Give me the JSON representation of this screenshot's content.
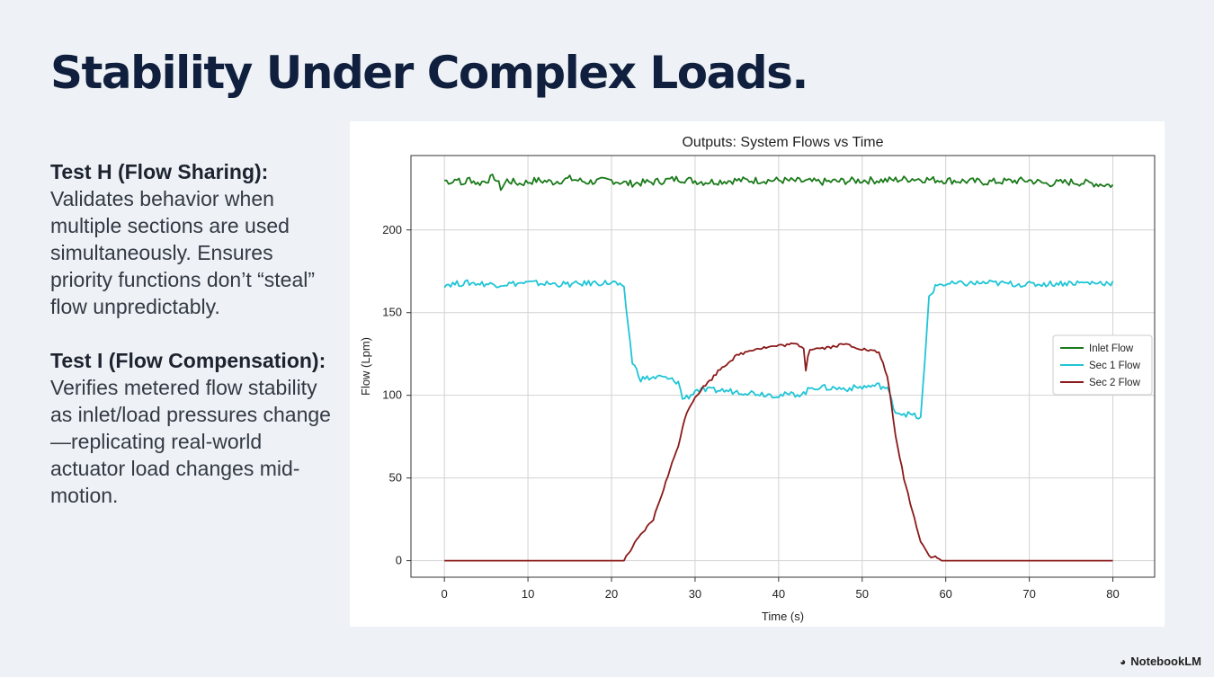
{
  "slide": {
    "title": "Stability Under Complex Loads.",
    "blocks": [
      {
        "heading": "Test H (Flow Sharing):",
        "text": "Validates behavior when multiple sections are used simultaneously. Ensures priority functions don’t “steal” flow unpredictably."
      },
      {
        "heading": "Test I (Flow Compensation):",
        "text": "Verifies metered flow stability as inlet/load pressures change—replicating real-world actuator load changes mid-motion."
      }
    ],
    "brand": "NotebookLM",
    "brand_icon": "notebooklm-logo-icon"
  },
  "chart_data": {
    "type": "line",
    "title": "Outputs: System Flows vs Time",
    "xlabel": "Time (s)",
    "ylabel": "Flow (Lpm)",
    "xlim": [
      -4,
      85
    ],
    "ylim": [
      -10,
      245
    ],
    "xticks": [
      0,
      10,
      20,
      30,
      40,
      50,
      60,
      70,
      80
    ],
    "yticks": [
      0,
      50,
      100,
      150,
      200
    ],
    "grid": true,
    "legend_position": "center-right",
    "series": [
      {
        "name": "Inlet Flow",
        "color": "#1a7a1a",
        "points": [
          [
            0,
            230
          ],
          [
            1,
            229
          ],
          [
            1.5,
            232
          ],
          [
            2,
            227
          ],
          [
            3,
            231
          ],
          [
            4,
            228
          ],
          [
            5,
            230
          ],
          [
            6,
            232
          ],
          [
            6.8,
            225
          ],
          [
            7.5,
            230
          ],
          [
            9,
            228
          ],
          [
            11,
            230
          ],
          [
            13,
            229
          ],
          [
            15,
            231
          ],
          [
            17,
            229
          ],
          [
            20,
            230
          ],
          [
            22,
            228
          ],
          [
            25,
            229
          ],
          [
            28,
            231
          ],
          [
            31,
            229
          ],
          [
            35,
            230
          ],
          [
            40,
            230
          ],
          [
            45,
            229
          ],
          [
            50,
            230
          ],
          [
            53,
            230
          ],
          [
            56,
            231
          ],
          [
            60,
            230
          ],
          [
            65,
            229
          ],
          [
            70,
            230
          ],
          [
            72,
            228
          ],
          [
            75,
            229
          ],
          [
            78,
            228
          ],
          [
            80,
            227
          ]
        ],
        "noise": 2.2
      },
      {
        "name": "Sec 1 Flow",
        "color": "#1fc5d6",
        "points": [
          [
            0,
            167
          ],
          [
            3,
            168
          ],
          [
            6,
            167
          ],
          [
            10,
            168
          ],
          [
            15,
            167
          ],
          [
            18,
            168
          ],
          [
            20.5,
            168
          ],
          [
            21.5,
            164
          ],
          [
            22.5,
            120
          ],
          [
            23.5,
            110
          ],
          [
            26,
            111
          ],
          [
            28,
            108
          ],
          [
            28.5,
            98
          ],
          [
            29.5,
            100
          ],
          [
            30,
            103
          ],
          [
            33,
            103
          ],
          [
            36,
            102
          ],
          [
            40,
            100
          ],
          [
            43,
            101
          ],
          [
            44,
            105
          ],
          [
            48,
            104
          ],
          [
            52,
            106
          ],
          [
            53,
            104
          ],
          [
            54,
            90
          ],
          [
            56,
            88
          ],
          [
            57,
            86
          ],
          [
            57.5,
            120
          ],
          [
            58,
            160
          ],
          [
            59,
            167
          ],
          [
            65,
            168
          ],
          [
            70,
            167
          ],
          [
            75,
            168
          ],
          [
            80,
            168
          ]
        ],
        "noise": 1.8
      },
      {
        "name": "Sec 2 Flow",
        "color": "#8b1a1a",
        "points": [
          [
            0,
            0
          ],
          [
            10,
            0
          ],
          [
            20,
            0
          ],
          [
            21.5,
            0
          ],
          [
            23,
            12
          ],
          [
            25,
            25
          ],
          [
            27,
            55
          ],
          [
            28,
            70
          ],
          [
            29,
            90
          ],
          [
            30,
            99
          ],
          [
            31,
            105
          ],
          [
            32,
            110
          ],
          [
            33,
            116
          ],
          [
            35,
            124
          ],
          [
            37,
            128
          ],
          [
            40,
            130
          ],
          [
            42,
            131
          ],
          [
            43,
            129
          ],
          [
            43.2,
            113
          ],
          [
            43.6,
            128
          ],
          [
            46,
            129
          ],
          [
            48,
            131
          ],
          [
            50,
            128
          ],
          [
            52,
            126
          ],
          [
            53,
            112
          ],
          [
            54,
            75
          ],
          [
            55,
            50
          ],
          [
            56,
            30
          ],
          [
            57,
            12
          ],
          [
            58,
            3
          ],
          [
            59,
            2
          ],
          [
            59.5,
            0
          ],
          [
            65,
            0
          ],
          [
            70,
            0
          ],
          [
            80,
            0
          ]
        ],
        "noise": 0.9
      }
    ]
  }
}
